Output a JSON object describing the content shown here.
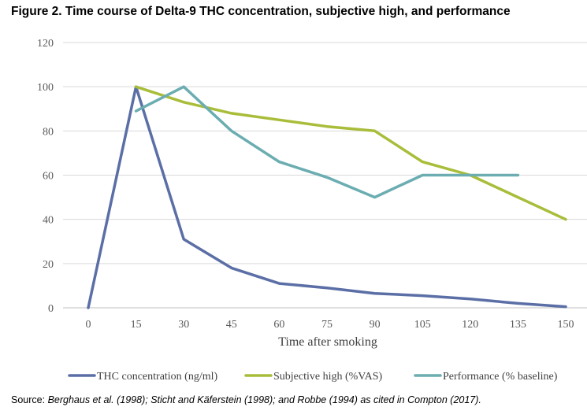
{
  "figure": {
    "title": "Figure 2. Time course of Delta-9 THC concentration, subjective high, and performance",
    "source_parts": [
      {
        "text": "Source: ",
        "italic": false
      },
      {
        "text": "Berghaus et al. (1998); Sticht and Käferstein (1998); and Robbe (1994) as cited in Compton (2017).",
        "italic": true
      }
    ]
  },
  "chart_data": {
    "type": "line",
    "title": "",
    "xlabel": "Time after smoking",
    "ylabel": "",
    "categories": [
      "0",
      "15",
      "30",
      "45",
      "60",
      "75",
      "90",
      "105",
      "120",
      "135",
      "150"
    ],
    "x": [
      0,
      15,
      30,
      45,
      60,
      75,
      90,
      105,
      120,
      135,
      150
    ],
    "ylim": [
      0,
      120
    ],
    "yticks": [
      0,
      20,
      40,
      60,
      80,
      100,
      120
    ],
    "grid": "horizontal",
    "legend_position": "bottom",
    "series": [
      {
        "name": "THC concentration (ng/ml)",
        "color": "#5B6FA6",
        "x": [
          0,
          15,
          30,
          45,
          60,
          75,
          90,
          105,
          120,
          135,
          150
        ],
        "values": [
          0,
          100,
          31,
          18,
          11,
          9,
          6.5,
          5.5,
          4,
          2,
          0.5
        ]
      },
      {
        "name": "Subjective high (%VAS)",
        "color": "#A9BD3A",
        "x": [
          15,
          30,
          45,
          60,
          75,
          90,
          105,
          120,
          135,
          150
        ],
        "values": [
          100,
          93,
          88,
          85,
          82,
          80,
          66,
          60,
          50,
          40
        ]
      },
      {
        "name": "Performance (% baseline)",
        "color": "#6BADB1",
        "x": [
          15,
          30,
          45,
          60,
          75,
          90,
          105,
          120,
          135
        ],
        "values": [
          89,
          100,
          80,
          66,
          59,
          50,
          60,
          60,
          60
        ]
      }
    ]
  }
}
